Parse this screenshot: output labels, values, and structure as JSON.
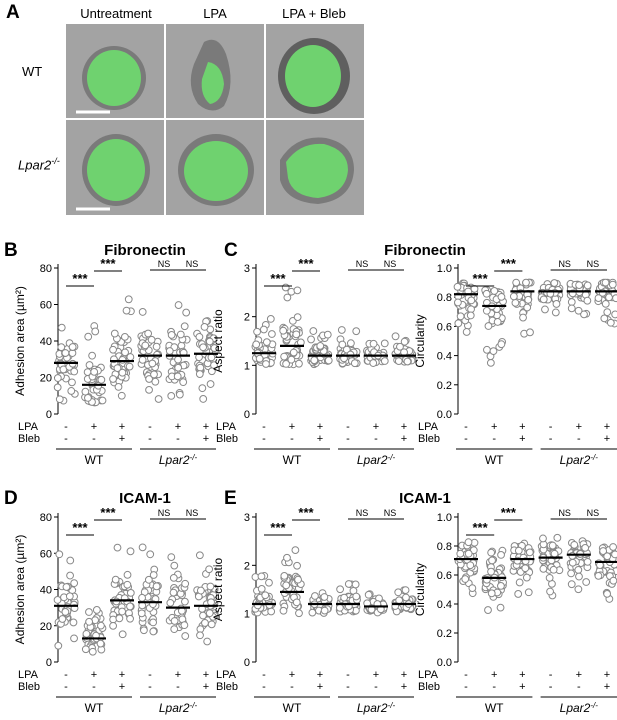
{
  "panel_a": {
    "letter": "A",
    "columns": [
      "Untreatment",
      "LPA",
      "LPA + Bleb"
    ],
    "rows": [
      {
        "label": "WT",
        "italic": false
      },
      {
        "label": "Lpar2",
        "sup": "-/-",
        "italic": true
      }
    ]
  },
  "panel_b": {
    "letter": "B",
    "title": "Fibronectin"
  },
  "panel_c": {
    "letter": "C",
    "title": "Fibronectin"
  },
  "panel_d": {
    "letter": "D",
    "title": "ICAM-1"
  },
  "panel_e": {
    "letter": "E",
    "title": "ICAM-1"
  },
  "treatments": {
    "lpa_label": "LPA",
    "bleb_label": "Bleb",
    "lpa": [
      "-",
      "+",
      "+",
      "-",
      "+",
      "+"
    ],
    "bleb": [
      "-",
      "-",
      "+",
      "-",
      "-",
      "+"
    ],
    "group_wt": "WT",
    "group_ko": "Lpar2",
    "group_ko_sup": "-/-"
  },
  "chart_data": [
    {
      "id": "B",
      "type": "scatter",
      "title": "Fibronectin",
      "ylabel": "Adhesion area (µm²)",
      "ylim": [
        0,
        80
      ],
      "yticks": [
        0,
        20,
        40,
        60,
        80
      ],
      "groups": [
        "WT -/-",
        "WT +/-",
        "WT +/+",
        "Lpar2 -/-",
        "Lpar2 +/-",
        "Lpar2 +/+"
      ],
      "medians": [
        28,
        16,
        29,
        32,
        32,
        33
      ],
      "spreads": [
        [
          7,
          52
        ],
        [
          5,
          50
        ],
        [
          10,
          65
        ],
        [
          8,
          65
        ],
        [
          6,
          65
        ],
        [
          7,
          58
        ]
      ],
      "significance": [
        {
          "from": 0,
          "to": 1,
          "label": "***"
        },
        {
          "from": 1,
          "to": 2,
          "label": "***"
        },
        {
          "from": 3,
          "to": 4,
          "label": "NS"
        },
        {
          "from": 4,
          "to": 5,
          "label": "NS"
        }
      ]
    },
    {
      "id": "C1",
      "type": "scatter",
      "title": "",
      "ylabel": "Aspect ratio",
      "ylim": [
        0,
        3
      ],
      "yticks": [
        0,
        1,
        2,
        3
      ],
      "groups": [
        "WT -/-",
        "WT +/-",
        "WT +/+",
        "Lpar2 -/-",
        "Lpar2 +/-",
        "Lpar2 +/+"
      ],
      "medians": [
        1.25,
        1.4,
        1.2,
        1.2,
        1.2,
        1.2
      ],
      "spreads": [
        [
          1.0,
          2.0
        ],
        [
          1.0,
          2.7
        ],
        [
          1.0,
          1.8
        ],
        [
          1.0,
          1.75
        ],
        [
          1.0,
          1.55
        ],
        [
          1.0,
          1.6
        ]
      ],
      "significance": [
        {
          "from": 0,
          "to": 1,
          "label": "***"
        },
        {
          "from": 1,
          "to": 2,
          "label": "***"
        },
        {
          "from": 3,
          "to": 4,
          "label": "NS"
        },
        {
          "from": 4,
          "to": 5,
          "label": "NS"
        }
      ]
    },
    {
      "id": "C2",
      "type": "scatter",
      "title": "",
      "ylabel": "Circularity",
      "ylim": [
        0,
        1.0
      ],
      "yticks": [
        0,
        0.2,
        0.4,
        0.6,
        0.8,
        1.0
      ],
      "groups": [
        "WT -/-",
        "WT +/-",
        "WT +/+",
        "Lpar2 -/-",
        "Lpar2 +/-",
        "Lpar2 +/+"
      ],
      "medians": [
        0.82,
        0.74,
        0.84,
        0.84,
        0.84,
        0.84
      ],
      "spreads": [
        [
          0.55,
          0.9
        ],
        [
          0.35,
          0.9
        ],
        [
          0.5,
          0.9
        ],
        [
          0.65,
          0.9
        ],
        [
          0.68,
          0.9
        ],
        [
          0.6,
          0.9
        ]
      ],
      "significance": [
        {
          "from": 0,
          "to": 1,
          "label": "***"
        },
        {
          "from": 1,
          "to": 2,
          "label": "***"
        },
        {
          "from": 3,
          "to": 4,
          "label": "NS"
        },
        {
          "from": 4,
          "to": 5,
          "label": "NS"
        }
      ]
    },
    {
      "id": "D",
      "type": "scatter",
      "title": "ICAM-1",
      "ylabel": "Adhesion area (µm²)",
      "ylim": [
        0,
        80
      ],
      "yticks": [
        0,
        20,
        40,
        60,
        80
      ],
      "groups": [
        "WT -/-",
        "WT +/-",
        "WT +/+",
        "Lpar2 -/-",
        "Lpar2 +/-",
        "Lpar2 +/+"
      ],
      "medians": [
        31,
        13,
        34,
        33,
        30,
        31
      ],
      "spreads": [
        [
          8,
          62
        ],
        [
          5,
          40
        ],
        [
          12,
          65
        ],
        [
          10,
          65
        ],
        [
          10,
          62
        ],
        [
          10,
          65
        ]
      ],
      "significance": [
        {
          "from": 0,
          "to": 1,
          "label": "***"
        },
        {
          "from": 1,
          "to": 2,
          "label": "***"
        },
        {
          "from": 3,
          "to": 4,
          "label": "NS"
        },
        {
          "from": 4,
          "to": 5,
          "label": "NS"
        }
      ]
    },
    {
      "id": "E1",
      "type": "scatter",
      "title": "",
      "ylabel": "Aspect ratio",
      "ylim": [
        0,
        3
      ],
      "yticks": [
        0,
        1,
        2,
        3
      ],
      "groups": [
        "WT -/-",
        "WT +/-",
        "WT +/+",
        "Lpar2 -/-",
        "Lpar2 +/-",
        "Lpar2 +/+"
      ],
      "medians": [
        1.2,
        1.45,
        1.2,
        1.2,
        1.15,
        1.2
      ],
      "spreads": [
        [
          1.0,
          1.8
        ],
        [
          1.0,
          2.4
        ],
        [
          1.0,
          1.55
        ],
        [
          1.0,
          1.7
        ],
        [
          1.0,
          1.45
        ],
        [
          1.0,
          1.5
        ]
      ],
      "significance": [
        {
          "from": 0,
          "to": 1,
          "label": "***"
        },
        {
          "from": 1,
          "to": 2,
          "label": "***"
        },
        {
          "from": 3,
          "to": 4,
          "label": "NS"
        },
        {
          "from": 4,
          "to": 5,
          "label": "NS"
        }
      ]
    },
    {
      "id": "E2",
      "type": "scatter",
      "title": "",
      "ylabel": "Circularity",
      "ylim": [
        0,
        1.0
      ],
      "yticks": [
        0,
        0.2,
        0.4,
        0.6,
        0.8,
        1.0
      ],
      "groups": [
        "WT -/-",
        "WT +/-",
        "WT +/+",
        "Lpar2 -/-",
        "Lpar2 +/-",
        "Lpar2 +/+"
      ],
      "medians": [
        0.71,
        0.58,
        0.71,
        0.72,
        0.74,
        0.69
      ],
      "spreads": [
        [
          0.45,
          0.87
        ],
        [
          0.25,
          0.84
        ],
        [
          0.45,
          0.86
        ],
        [
          0.45,
          0.86
        ],
        [
          0.45,
          0.87
        ],
        [
          0.4,
          0.86
        ]
      ],
      "significance": [
        {
          "from": 0,
          "to": 1,
          "label": "***"
        },
        {
          "from": 1,
          "to": 2,
          "label": "***"
        },
        {
          "from": 3,
          "to": 4,
          "label": "NS"
        },
        {
          "from": 4,
          "to": 5,
          "label": "NS"
        }
      ]
    }
  ]
}
